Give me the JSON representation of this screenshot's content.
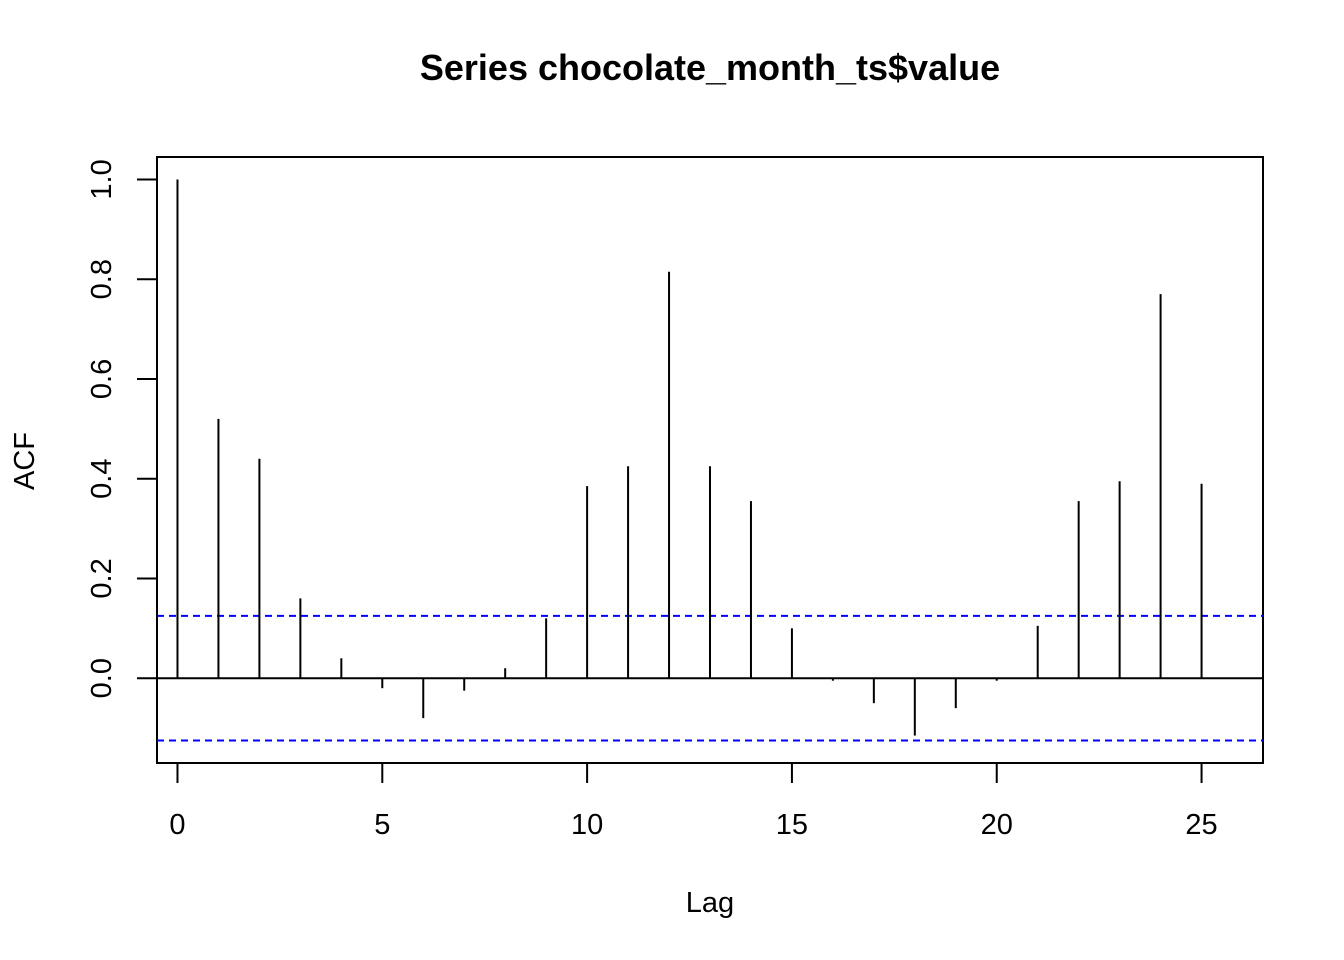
{
  "chart_data": {
    "type": "bar",
    "title": "Series  chocolate_month_ts$value",
    "xlabel": "Lag",
    "ylabel": "ACF",
    "xlim": [
      -0.5,
      26.5
    ],
    "ylim": [
      -0.17,
      1.045
    ],
    "x_ticks": [
      0,
      5,
      10,
      15,
      20,
      25
    ],
    "y_ticks": [
      0.0,
      0.2,
      0.4,
      0.6,
      0.8,
      1.0
    ],
    "x_tick_labels": [
      "0",
      "5",
      "10",
      "15",
      "20",
      "25"
    ],
    "y_tick_labels": [
      "0.0",
      "0.2",
      "0.4",
      "0.6",
      "0.8",
      "1.0"
    ],
    "ci_upper": 0.125,
    "ci_lower": -0.125,
    "ci_color": "#0000ff",
    "grid": false,
    "lags": [
      0,
      1,
      2,
      3,
      4,
      5,
      6,
      7,
      8,
      9,
      10,
      11,
      12,
      13,
      14,
      15,
      16,
      17,
      18,
      19,
      20,
      21,
      22,
      23,
      24,
      25
    ],
    "acf": [
      1.0,
      0.52,
      0.44,
      0.16,
      0.04,
      -0.02,
      -0.08,
      -0.025,
      0.02,
      0.12,
      0.385,
      0.425,
      0.815,
      0.425,
      0.355,
      0.1,
      -0.005,
      -0.05,
      -0.115,
      -0.06,
      -0.005,
      0.105,
      0.355,
      0.395,
      0.77,
      0.39
    ]
  }
}
